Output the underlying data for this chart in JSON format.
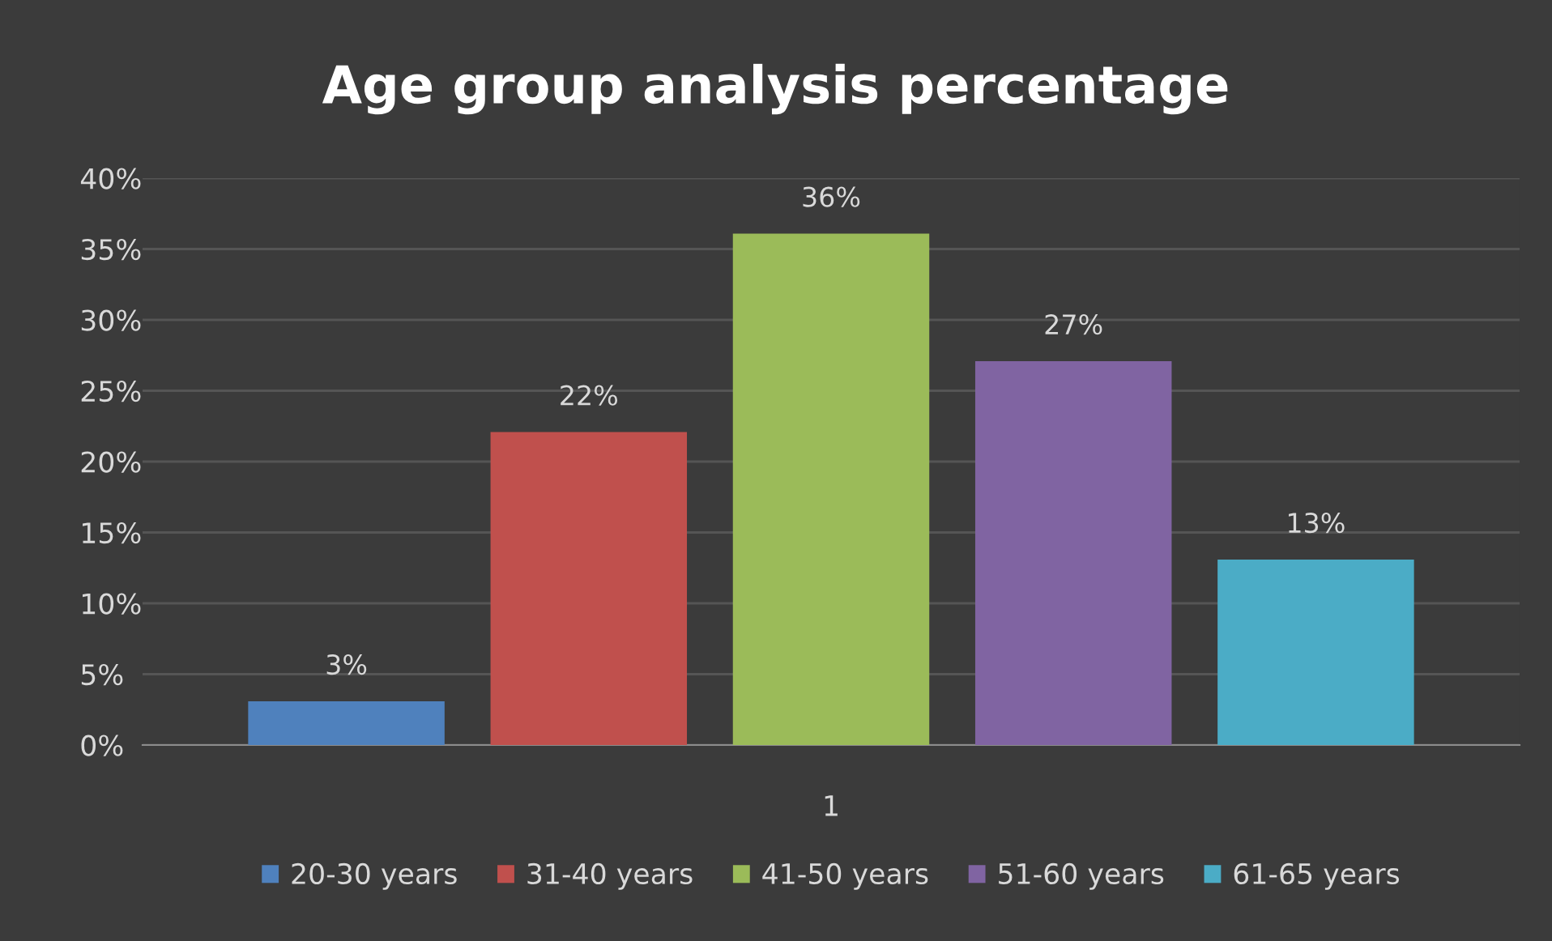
{
  "chart_data": {
    "type": "bar",
    "title": "Age group analysis percentage",
    "categories": [
      "1"
    ],
    "series": [
      {
        "name": "20-30 years",
        "color": "#4f81bd",
        "values": [
          3
        ],
        "value_labels": [
          "3%"
        ]
      },
      {
        "name": "31-40 years",
        "color": "#c0504d",
        "values": [
          22
        ],
        "value_labels": [
          "22%"
        ]
      },
      {
        "name": "41-50 years",
        "color": "#9bbb59",
        "values": [
          36
        ],
        "value_labels": [
          "36%"
        ]
      },
      {
        "name": "51-60 years",
        "color": "#8064a2",
        "values": [
          27
        ],
        "value_labels": [
          "27%"
        ]
      },
      {
        "name": "61-65 years",
        "color": "#4bacc6",
        "values": [
          13
        ],
        "value_labels": [
          "13%"
        ]
      }
    ],
    "ylim": [
      0,
      40
    ],
    "yticks": [
      {
        "value": 0,
        "label": "0%"
      },
      {
        "value": 5,
        "label": "5%"
      },
      {
        "value": 10,
        "label": "10%"
      },
      {
        "value": 15,
        "label": "15%"
      },
      {
        "value": 20,
        "label": "20%"
      },
      {
        "value": 25,
        "label": "25%"
      },
      {
        "value": 30,
        "label": "30%"
      },
      {
        "value": 35,
        "label": "35%"
      },
      {
        "value": 40,
        "label": "40%"
      }
    ],
    "grid": "y",
    "legend": "bottom"
  }
}
